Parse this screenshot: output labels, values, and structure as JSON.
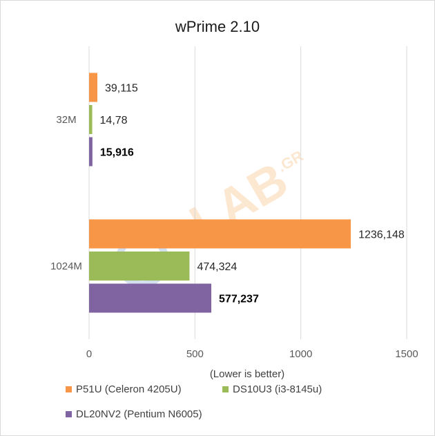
{
  "chart_data": {
    "type": "bar",
    "orientation": "horizontal",
    "title": "wPrime 2.10",
    "xlabel": "(Lower is better)",
    "ylabel": "",
    "categories": [
      "32M",
      "1024M"
    ],
    "xlim": [
      0,
      1500
    ],
    "xticks": [
      "0",
      "500",
      "1000",
      "1500"
    ],
    "grid": true,
    "legend_position": "bottom",
    "series": [
      {
        "name": "P51U (Celeron 4205U)",
        "color": "#F79646",
        "values": [
          39.115,
          1236.148
        ],
        "labels": [
          "39,115",
          "1236,148"
        ],
        "bold": false
      },
      {
        "name": "DS10U3 (i3-8145u)",
        "color": "#9BBB59",
        "values": [
          14.78,
          474.324
        ],
        "labels": [
          "14,78",
          "474,324"
        ],
        "bold": false
      },
      {
        "name": "DL20NV2 (Pentium N6005)",
        "color": "#8064A2",
        "values": [
          15.916,
          577.237
        ],
        "labels": [
          "15,916",
          "577,237"
        ],
        "bold": true
      }
    ],
    "watermark": {
      "text": "LAB",
      "suffix": ".GR",
      "color": "#F7A14A"
    }
  }
}
